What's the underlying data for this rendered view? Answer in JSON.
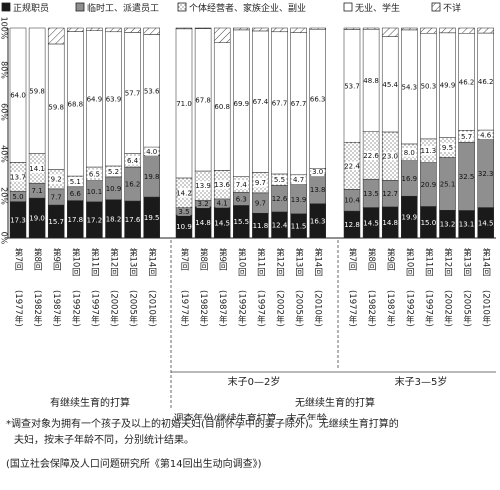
{
  "chart_data": {
    "type": "bar",
    "stacked": true,
    "y_tick_labels": [
      "0%",
      "20%",
      "40%",
      "60%",
      "80%",
      "100%"
    ],
    "ylim": [
      0,
      100
    ],
    "legend": [
      {
        "key": "regular",
        "label": "正规职员",
        "color": "#1a1a1a",
        "pattern": "solid"
      },
      {
        "key": "temp",
        "label": "临时工、派遣员工",
        "color": "#8f8f8f",
        "pattern": "solid"
      },
      {
        "key": "self",
        "label": "个体经营者、家族企业、副业",
        "color": "#ffffff",
        "pattern": "dots"
      },
      {
        "key": "none",
        "label": "无业、学生",
        "color": "#ffffff",
        "pattern": "blank"
      },
      {
        "key": "unknown",
        "label": "不详",
        "color": "#ffffff",
        "pattern": "hatch"
      }
    ],
    "xlabel": "调查年份/继续生育打算、末子年龄",
    "round_labels": [
      "第7回",
      "第8回",
      "第9回",
      "第10回",
      "第11回",
      "第12回",
      "第13回",
      "第14回"
    ],
    "year_labels": [
      "1977年",
      "1982年",
      "1987年",
      "1992年",
      "1997年",
      "2002年",
      "2005年",
      "2010年"
    ],
    "groups": [
      {
        "label": "有继续生育的打算",
        "superlabel": "",
        "series": {
          "regular": [
            17.3,
            19.0,
            15.7,
            17.8,
            17.2,
            18.2,
            17.6,
            19.5
          ],
          "temp": [
            5.0,
            7.1,
            7.7,
            6.6,
            10.1,
            10.9,
            16.2,
            19.8
          ],
          "self": [
            13.7,
            14.1,
            9.2,
            5.1,
            6.5,
            5.2,
            6.4,
            4.0
          ],
          "none": [
            64.0,
            59.8,
            59.8,
            68.8,
            64.9,
            63.9,
            57.7,
            53.6
          ],
          "unknown": [
            0.0,
            0.0,
            7.6,
            1.7,
            1.3,
            1.8,
            2.1,
            3.1
          ]
        },
        "labels": {
          "regular": [
            "17.3",
            "19.0",
            "15.7",
            "17.8",
            "17.2",
            "18.2",
            "17.6",
            "19.5"
          ],
          "temp": [
            "5.0",
            "7.1",
            "7.7",
            "6.6",
            "10.1",
            "10.9",
            "16.2",
            "19.8"
          ],
          "self": [
            "13.7",
            "14.1",
            "9.2",
            "5.1",
            "6.5",
            "5.2",
            "6.4",
            "4.0"
          ],
          "none": [
            "64.0",
            "59.8",
            "59.8",
            "68.8",
            "64.9",
            "63.9",
            "57.7",
            "53.6"
          ]
        }
      },
      {
        "label": "末子0—2岁",
        "superlabel": "无继续生育的打算",
        "series": {
          "regular": [
            10.9,
            14.8,
            14.5,
            15.5,
            11.8,
            12.4,
            11.5,
            16.3
          ],
          "temp": [
            3.5,
            3.2,
            4.1,
            6.3,
            9.7,
            12.6,
            13.9,
            13.8
          ],
          "self": [
            14.2,
            13.9,
            13.6,
            7.4,
            9.7,
            5.5,
            4.7,
            3.0
          ],
          "none": [
            71.0,
            67.8,
            60.8,
            69.9,
            67.4,
            67.7,
            67.7,
            66.3
          ],
          "unknown": [
            0.4,
            0.3,
            7.0,
            0.9,
            1.4,
            1.8,
            2.2,
            0.6
          ]
        },
        "labels": {
          "regular": [
            "10.9",
            "14.8",
            "14.5",
            "15.5",
            "11.8",
            "12.4",
            "11.5",
            "16.3"
          ],
          "temp": [
            "3.5",
            "3.2",
            "4.1",
            "6.3",
            "9.7",
            "12.6",
            "13.9",
            "13.8"
          ],
          "self": [
            "14.2",
            "13.9",
            "13.6",
            "7.4",
            "9.7",
            "5.5",
            "4.7",
            "3.0"
          ],
          "none": [
            "71.0",
            "67.8",
            "60.8",
            "69.9",
            "67.4",
            "67.7",
            "67.7",
            "66.3"
          ]
        }
      },
      {
        "label": "末子3—5岁",
        "superlabel": "",
        "series": {
          "regular": [
            12.8,
            14.5,
            14.8,
            19.9,
            15.0,
            13.2,
            13.1,
            14.5
          ],
          "temp": [
            10.4,
            13.5,
            12.7,
            16.9,
            20.9,
            25.1,
            32.5,
            32.3
          ],
          "self": [
            22.4,
            22.6,
            23.0,
            8.0,
            11.3,
            9.5,
            5.7,
            4.6
          ],
          "none": [
            53.7,
            48.8,
            45.4,
            54.3,
            50.3,
            49.9,
            46.2,
            46.2
          ],
          "unknown": [
            0.7,
            0.6,
            4.1,
            0.9,
            2.5,
            2.3,
            2.5,
            2.4
          ]
        },
        "labels": {
          "regular": [
            "12.8",
            "14.5",
            "14.8",
            "19.9",
            "15.0",
            "13.2",
            "13.1",
            "14.5"
          ],
          "temp": [
            "10.4",
            "13.5",
            "12.7",
            "16.9",
            "20.9",
            "25.1",
            "32.5",
            "32.3"
          ],
          "self": [
            "22.4",
            "22.6",
            "23.0",
            "8.0",
            "11.3",
            "9.5",
            "5.7",
            "4.6"
          ],
          "none": [
            "53.7",
            "48.8",
            "45.4",
            "54.3",
            "50.3",
            "49.9",
            "46.2",
            "46.2"
          ]
        }
      }
    ]
  },
  "notes": {
    "line1": "*调查对象为拥有一个孩子及以上的初婚夫妇(目前怀孕中的妻子除外)。无继续生育打算的",
    "line2": "夫妇，按末子年龄不同，分别统计结果。",
    "source": "(国立社会保障及人口问题研究所《第14回出生动向调查》)"
  }
}
